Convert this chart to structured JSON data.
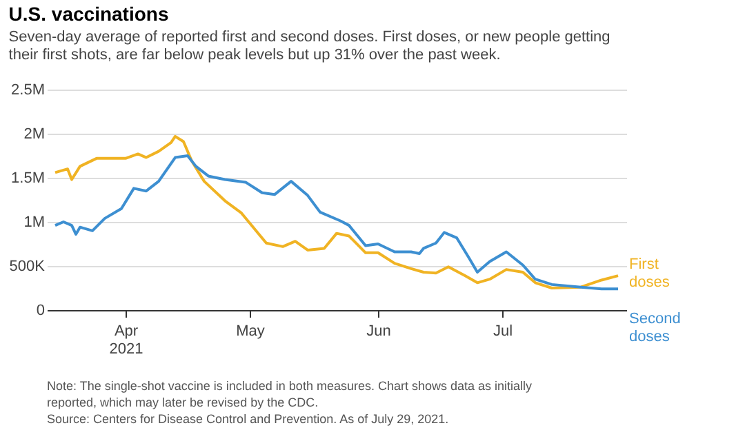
{
  "chart_data": {
    "type": "line",
    "title": "U.S. vaccinations",
    "subtitle": "Seven-day average of reported first and second doses. First doses, or new people getting their first shots, are far below peak levels but up 31% over the past week.",
    "annotations": [
      "Note: The single-shot vaccine is included in both measures. Chart shows data as initially reported, which may later be revised by the CDC.",
      "Source: Centers for Disease Control and Prevention. As of July 29, 2021."
    ],
    "series": [
      {
        "name": "First doses",
        "color": "#f0b323",
        "x": [
          "2021-03-15",
          "2021-03-18",
          "2021-03-19",
          "2021-03-21",
          "2021-03-25",
          "2021-04-01",
          "2021-04-04",
          "2021-04-06",
          "2021-04-09",
          "2021-04-12",
          "2021-04-13",
          "2021-04-15",
          "2021-04-17",
          "2021-04-20",
          "2021-04-25",
          "2021-04-29",
          "2021-05-02",
          "2021-05-05",
          "2021-05-09",
          "2021-05-12",
          "2021-05-15",
          "2021-05-19",
          "2021-05-22",
          "2021-05-25",
          "2021-05-29",
          "2021-06-01",
          "2021-06-05",
          "2021-06-09",
          "2021-06-12",
          "2021-06-15",
          "2021-06-18",
          "2021-06-22",
          "2021-06-25",
          "2021-06-28",
          "2021-07-02",
          "2021-07-06",
          "2021-07-09",
          "2021-07-13",
          "2021-07-20",
          "2021-07-25",
          "2021-07-29"
        ],
        "values": [
          1560000,
          1600000,
          1480000,
          1630000,
          1720000,
          1720000,
          1770000,
          1730000,
          1800000,
          1900000,
          1970000,
          1910000,
          1690000,
          1460000,
          1240000,
          1100000,
          930000,
          760000,
          720000,
          780000,
          680000,
          700000,
          870000,
          840000,
          650000,
          650000,
          530000,
          470000,
          430000,
          420000,
          490000,
          390000,
          310000,
          350000,
          460000,
          430000,
          310000,
          250000,
          260000,
          340000,
          390000
        ]
      },
      {
        "name": "Second doses",
        "color": "#3d8fd1",
        "x": [
          "2021-03-15",
          "2021-03-17",
          "2021-03-19",
          "2021-03-20",
          "2021-03-21",
          "2021-03-24",
          "2021-03-27",
          "2021-03-31",
          "2021-04-03",
          "2021-04-06",
          "2021-04-09",
          "2021-04-13",
          "2021-04-16",
          "2021-04-18",
          "2021-04-21",
          "2021-04-25",
          "2021-04-30",
          "2021-05-04",
          "2021-05-07",
          "2021-05-11",
          "2021-05-15",
          "2021-05-18",
          "2021-05-23",
          "2021-05-25",
          "2021-05-29",
          "2021-06-01",
          "2021-06-05",
          "2021-06-09",
          "2021-06-11",
          "2021-06-12",
          "2021-06-15",
          "2021-06-17",
          "2021-06-20",
          "2021-06-23",
          "2021-06-25",
          "2021-06-28",
          "2021-07-02",
          "2021-07-06",
          "2021-07-09",
          "2021-07-13",
          "2021-07-20",
          "2021-07-25",
          "2021-07-29"
        ],
        "values": [
          960000,
          1000000,
          960000,
          860000,
          940000,
          900000,
          1040000,
          1150000,
          1380000,
          1350000,
          1460000,
          1730000,
          1750000,
          1630000,
          1520000,
          1480000,
          1450000,
          1330000,
          1310000,
          1460000,
          1300000,
          1110000,
          1010000,
          960000,
          730000,
          750000,
          660000,
          660000,
          640000,
          700000,
          760000,
          880000,
          820000,
          590000,
          430000,
          550000,
          660000,
          510000,
          350000,
          290000,
          260000,
          240000,
          240000
        ]
      }
    ],
    "xlim": [
      "2021-03-13",
      "2021-07-31"
    ],
    "xticks": [
      {
        "value": "2021-04-01",
        "label": "Apr\n2021"
      },
      {
        "value": "2021-05-01",
        "label": "May"
      },
      {
        "value": "2021-06-01",
        "label": "Jun"
      },
      {
        "value": "2021-07-01",
        "label": "Jul"
      }
    ],
    "ylim": [
      0,
      2500000
    ],
    "yticks": [
      {
        "value": 0,
        "label": "0"
      },
      {
        "value": 500000,
        "label": "500K"
      },
      {
        "value": 1000000,
        "label": "1M"
      },
      {
        "value": 1500000,
        "label": "1.5M"
      },
      {
        "value": 2000000,
        "label": "2M"
      },
      {
        "value": 2500000,
        "label": "2.5M"
      }
    ],
    "grid": "y",
    "line_style": "solid"
  }
}
